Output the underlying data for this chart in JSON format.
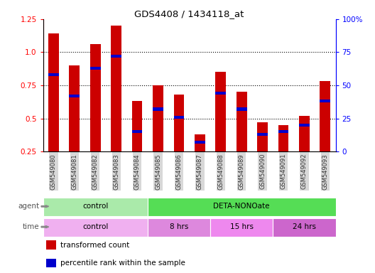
{
  "title": "GDS4408 / 1434118_at",
  "samples": [
    "GSM549080",
    "GSM549081",
    "GSM549082",
    "GSM549083",
    "GSM549084",
    "GSM549085",
    "GSM549086",
    "GSM549087",
    "GSM549088",
    "GSM549089",
    "GSM549090",
    "GSM549091",
    "GSM549092",
    "GSM549093"
  ],
  "transformed_count": [
    1.14,
    0.9,
    1.06,
    1.2,
    0.63,
    0.75,
    0.68,
    0.38,
    0.85,
    0.7,
    0.47,
    0.45,
    0.52,
    0.78
  ],
  "percentile_rank": [
    0.83,
    0.67,
    0.88,
    0.97,
    0.4,
    0.57,
    0.51,
    0.32,
    0.69,
    0.57,
    0.38,
    0.4,
    0.45,
    0.63
  ],
  "ylim_left": [
    0.25,
    1.25
  ],
  "ylim_right": [
    0,
    100
  ],
  "bar_color": "#cc0000",
  "blue_color": "#0000cc",
  "bg_color": "#ffffff",
  "agent_groups": [
    {
      "label": "control",
      "start": 0,
      "end": 5,
      "color": "#aaeaaa"
    },
    {
      "label": "DETA-NONOate",
      "start": 5,
      "end": 14,
      "color": "#55dd55"
    }
  ],
  "time_groups": [
    {
      "label": "control",
      "start": 0,
      "end": 5,
      "color": "#f0b0f0"
    },
    {
      "label": "8 hrs",
      "start": 5,
      "end": 8,
      "color": "#dd88dd"
    },
    {
      "label": "15 hrs",
      "start": 8,
      "end": 11,
      "color": "#ee88ee"
    },
    {
      "label": "24 hrs",
      "start": 11,
      "end": 14,
      "color": "#cc66cc"
    }
  ],
  "legend_items": [
    {
      "label": "transformed count",
      "color": "#cc0000"
    },
    {
      "label": "percentile rank within the sample",
      "color": "#0000cc"
    }
  ],
  "left_yticks": [
    0.25,
    0.5,
    0.75,
    1.0,
    1.25
  ],
  "right_yticks": [
    0,
    25,
    50,
    75,
    100
  ],
  "right_ytick_labels": [
    "0",
    "25",
    "50",
    "75",
    "100%"
  ],
  "bar_width": 0.5,
  "blue_bar_height": 0.022
}
